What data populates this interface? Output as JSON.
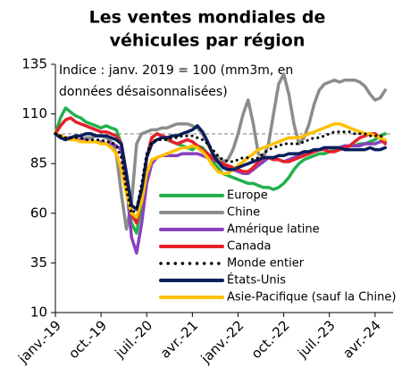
{
  "chart_data": {
    "type": "line",
    "title": [
      "Les ventes mondiales de",
      "véhicules par région"
    ],
    "annotation": [
      "Indice : janv. 2019 = 100 (mm3m, en",
      "données désaisonnalisées)"
    ],
    "reference": 100,
    "categories": [
      "janv.-19",
      null,
      null,
      null,
      null,
      null,
      null,
      null,
      null,
      "oct.-19",
      null,
      null,
      null,
      null,
      null,
      null,
      null,
      null,
      "juil.-20",
      null,
      null,
      null,
      null,
      null,
      null,
      null,
      null,
      "avr.-21",
      null,
      null,
      null,
      null,
      null,
      null,
      null,
      null,
      "janv.-22",
      null,
      null,
      null,
      null,
      null,
      null,
      null,
      null,
      "oct.-22",
      null,
      null,
      null,
      null,
      null,
      null,
      null,
      null,
      "juil.-23",
      null,
      null,
      null,
      null,
      null,
      null,
      null,
      null,
      "avr.-24",
      null,
      null
    ],
    "ylim": [
      10,
      135
    ],
    "yticks": [
      10,
      35,
      60,
      85,
      110,
      135
    ],
    "series": [
      {
        "name": "Europe",
        "color": "#22b14c",
        "values": [
          100,
          108,
          113,
          111,
          109,
          108,
          106,
          105,
          104,
          103,
          104,
          103,
          102,
          95,
          75,
          55,
          50,
          65,
          88,
          98,
          100,
          99,
          97,
          96,
          95,
          94,
          93,
          92,
          94,
          93,
          90,
          86,
          83,
          80,
          79,
          78,
          77,
          76,
          75,
          75,
          74,
          73,
          73,
          72,
          73,
          75,
          78,
          82,
          85,
          87,
          88,
          89,
          90,
          90,
          91,
          92,
          93,
          93,
          94,
          94,
          95,
          95,
          96,
          97,
          99,
          100
        ]
      },
      {
        "name": "Chine",
        "color": "#8c8c8c",
        "values": [
          100,
          99,
          98,
          98,
          97,
          97,
          98,
          98,
          99,
          99,
          98,
          96,
          90,
          70,
          52,
          65,
          95,
          100,
          101,
          102,
          102,
          103,
          103,
          104,
          105,
          105,
          105,
          104,
          103,
          100,
          95,
          90,
          88,
          86,
          87,
          92,
          100,
          110,
          117,
          105,
          90,
          88,
          95,
          110,
          125,
          130,
          120,
          105,
          95,
          98,
          105,
          115,
          122,
          125,
          126,
          127,
          126,
          127,
          127,
          127,
          126,
          124,
          120,
          117,
          118,
          122
        ]
      },
      {
        "name": "Amérique latine",
        "color": "#8a3fbf",
        "values": [
          100,
          99,
          98,
          98,
          97,
          97,
          97,
          96,
          96,
          96,
          95,
          95,
          94,
          92,
          75,
          48,
          40,
          55,
          75,
          85,
          88,
          89,
          89,
          89,
          89,
          90,
          90,
          90,
          90,
          89,
          88,
          87,
          86,
          85,
          83,
          82,
          81,
          80,
          80,
          82,
          84,
          86,
          88,
          88,
          87,
          86,
          87,
          88,
          89,
          90,
          91,
          92,
          92,
          93,
          93,
          93,
          93,
          94,
          94,
          94,
          94,
          95,
          95,
          95,
          96,
          96
        ]
      },
      {
        "name": "Canada",
        "color": "#e6202a",
        "values": [
          100,
          104,
          107,
          108,
          106,
          105,
          104,
          103,
          102,
          101,
          101,
          100,
          99,
          95,
          80,
          60,
          55,
          68,
          88,
          98,
          100,
          99,
          98,
          96,
          95,
          96,
          97,
          96,
          94,
          92,
          90,
          88,
          86,
          85,
          84,
          83,
          82,
          81,
          81,
          83,
          86,
          88,
          88,
          87,
          87,
          86,
          86,
          87,
          88,
          89,
          90,
          91,
          92,
          92,
          91,
          91,
          92,
          93,
          94,
          96,
          98,
          99,
          100,
          100,
          98,
          95
        ]
      },
      {
        "name": "Monde entier",
        "color": "#000000",
        "dotted": true,
        "values": [
          100,
          99,
          98,
          98,
          98,
          98,
          97,
          97,
          97,
          97,
          96,
          96,
          94,
          88,
          72,
          60,
          62,
          75,
          90,
          96,
          97,
          97,
          97,
          98,
          98,
          99,
          99,
          99,
          98,
          97,
          95,
          92,
          89,
          87,
          86,
          86,
          87,
          88,
          88,
          87,
          88,
          90,
          92,
          93,
          94,
          95,
          95,
          95,
          95,
          96,
          97,
          98,
          98,
          99,
          100,
          101,
          101,
          101,
          101,
          100,
          100,
          100,
          99,
          99,
          99,
          98
        ]
      },
      {
        "name": "États-Unis",
        "color": "#0a1f5c",
        "values": [
          100,
          98,
          97,
          98,
          99,
          99,
          100,
          100,
          99,
          99,
          99,
          98,
          97,
          95,
          80,
          64,
          62,
          72,
          88,
          95,
          97,
          98,
          98,
          99,
          99,
          100,
          101,
          102,
          104,
          101,
          96,
          90,
          86,
          83,
          82,
          82,
          83,
          84,
          85,
          86,
          87,
          88,
          88,
          88,
          89,
          89,
          90,
          90,
          90,
          91,
          91,
          92,
          92,
          93,
          93,
          93,
          93,
          92,
          92,
          92,
          92,
          92,
          93,
          92,
          92,
          93
        ]
      },
      {
        "name": "Asie-Pacifique (sauf la Chine)",
        "color": "#ffc000",
        "values": [
          100,
          99,
          98,
          97,
          97,
          96,
          96,
          96,
          96,
          95,
          95,
          93,
          90,
          82,
          70,
          60,
          58,
          66,
          80,
          87,
          88,
          89,
          90,
          91,
          92,
          93,
          93,
          94,
          93,
          91,
          88,
          84,
          81,
          80,
          80,
          82,
          84,
          86,
          88,
          90,
          92,
          93,
          94,
          95,
          96,
          97,
          98,
          98,
          98,
          99,
          100,
          101,
          102,
          103,
          104,
          105,
          105,
          104,
          103,
          102,
          101,
          100,
          100,
          99,
          98,
          97
        ]
      }
    ]
  }
}
